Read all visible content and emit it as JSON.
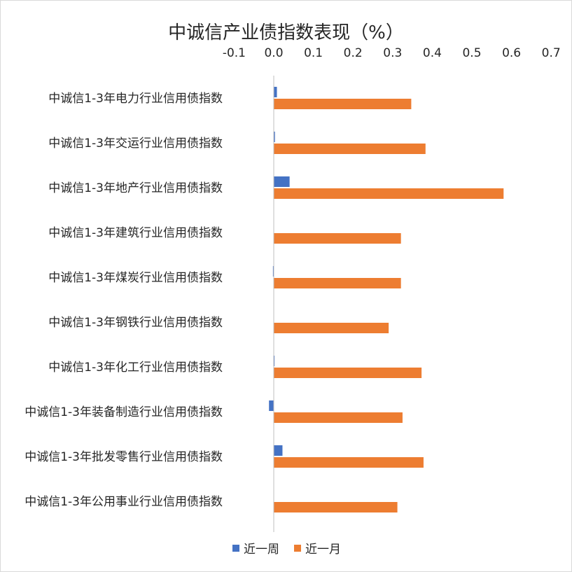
{
  "chart_data": {
    "type": "bar",
    "orientation": "horizontal",
    "title": "中诚信产业债指数表现（%）",
    "x_ticks": [
      "-0.1",
      "0.0",
      "0.1",
      "0.2",
      "0.3",
      "0.4",
      "0.5",
      "0.6",
      "0.7"
    ],
    "xlim": [
      -0.1,
      0.7
    ],
    "axis_position": "top",
    "negative_tick_color": "#e00000",
    "legend_position": "bottom",
    "grid": false,
    "categories": [
      "中诚信1-3年电力行业信用债指数",
      "中诚信1-3年交运行业信用债指数",
      "中诚信1-3年地产行业信用债指数",
      "中诚信1-3年建筑行业信用债指数",
      "中诚信1-3年煤炭行业信用债指数",
      "中诚信1-3年钢铁行业信用债指数",
      "中诚信1-3年化工行业信用债指数",
      "中诚信1-3年装备制造行业信用债指数",
      "中诚信1-3年批发零售行业信用债指数",
      "中诚信1-3年公用事业行业信用债指数"
    ],
    "series": [
      {
        "name": "近一周",
        "color": "#4472c4",
        "values": [
          0.008,
          0.003,
          0.04,
          0.0,
          -0.002,
          0.0,
          0.002,
          -0.012,
          0.022,
          0.0
        ]
      },
      {
        "name": "近一月",
        "color": "#ed7d31",
        "values": [
          0.347,
          0.383,
          0.58,
          0.321,
          0.321,
          0.29,
          0.373,
          0.325,
          0.378,
          0.312
        ]
      }
    ]
  }
}
